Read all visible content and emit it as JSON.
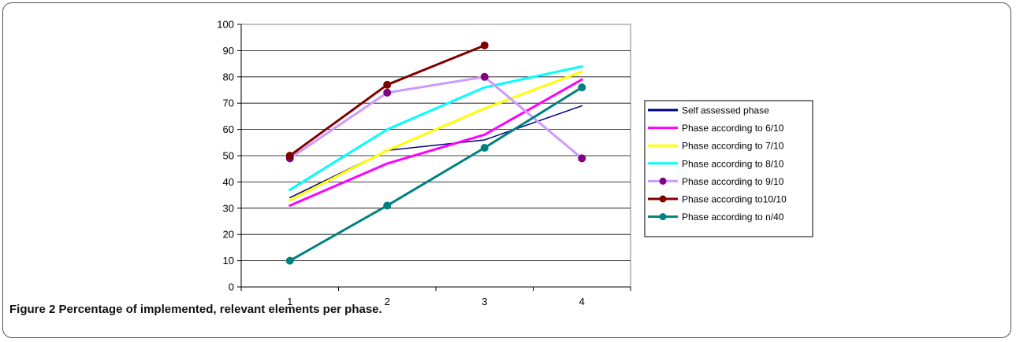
{
  "caption": {
    "label": "Figure 2",
    "text": "Percentage of implemented, relevant elements per phase."
  },
  "chart_data": {
    "type": "line",
    "categories": [
      "1",
      "2",
      "3",
      "4"
    ],
    "ylim": [
      0,
      100
    ],
    "yticks": [
      "0",
      "10",
      "20",
      "30",
      "40",
      "50",
      "60",
      "70",
      "80",
      "90",
      "100"
    ],
    "grid": "horizontal",
    "legend_position": "right",
    "series": [
      {
        "name": "Self assessed phase",
        "values": [
          34,
          52,
          56,
          69
        ],
        "color": "#000080",
        "marker": false
      },
      {
        "name": "Phase according to 6/10",
        "values": [
          31,
          47,
          58,
          79
        ],
        "color": "#ff00ff",
        "marker": false
      },
      {
        "name": "Phase according to 7/10",
        "values": [
          33,
          52,
          68,
          82
        ],
        "color": "#ffff00",
        "marker": false
      },
      {
        "name": "Phase according to 8/10",
        "values": [
          37,
          60,
          76,
          84
        ],
        "color": "#00ffff",
        "marker": false
      },
      {
        "name": "Phase according to 9/10",
        "values": [
          49,
          74,
          80,
          49
        ],
        "color": "#cc99ff",
        "marker": true,
        "marker_color": "#800080"
      },
      {
        "name": "Phase according to10/10",
        "values": [
          50,
          77,
          92,
          null
        ],
        "color": "#800000",
        "marker": true,
        "marker_color": "#800000"
      },
      {
        "name": "Phase according to n/40",
        "values": [
          10,
          31,
          53,
          76
        ],
        "color": "#008080",
        "marker": true,
        "marker_color": "#008080"
      }
    ]
  }
}
